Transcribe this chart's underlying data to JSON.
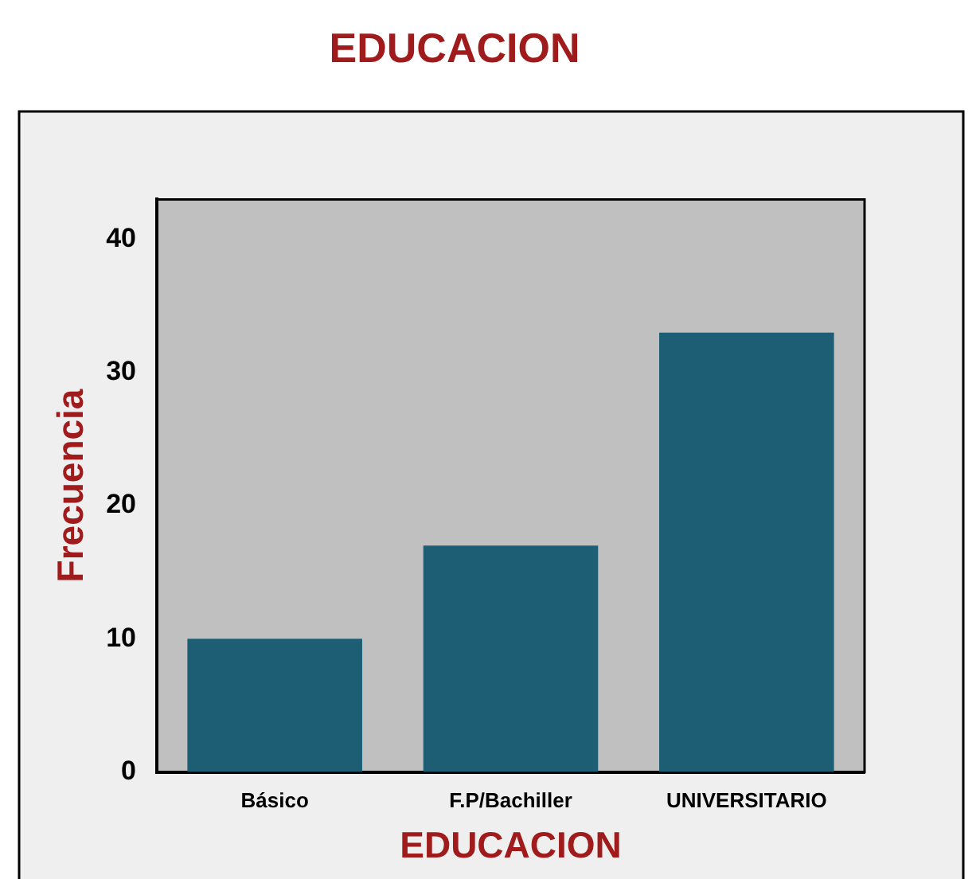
{
  "chart_data": {
    "type": "bar",
    "title": "EDUCACION",
    "xlabel": "EDUCACION",
    "ylabel": "Frecuencia",
    "categories": [
      "Básico",
      "F.P/Bachiller",
      "UNIVERSITARIO"
    ],
    "values": [
      10,
      17,
      33
    ],
    "color": "#1d5e74",
    "ylim": [
      0,
      43
    ],
    "yticks": [
      0,
      10,
      20,
      30,
      40
    ],
    "grid": false,
    "legend": false
  }
}
